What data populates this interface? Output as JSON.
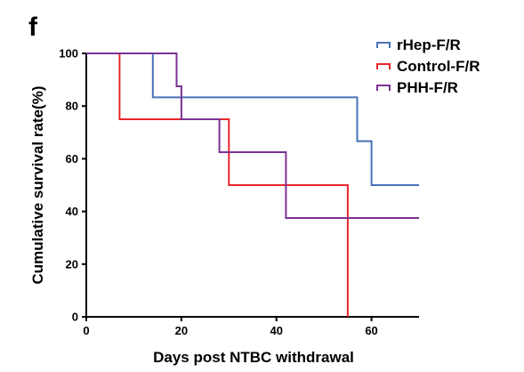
{
  "panel_label": "f",
  "chart_data": {
    "type": "line",
    "subtype": "kaplan-meier-step",
    "xlabel": "Days post NTBC withdrawal",
    "ylabel": "Cumulative survival rate(%)",
    "xlim": [
      0,
      70
    ],
    "ylim": [
      0,
      100
    ],
    "x_ticks": [
      0,
      20,
      40,
      60
    ],
    "y_ticks": [
      0,
      20,
      40,
      60,
      80,
      100
    ],
    "grid": false,
    "legend_position": "top-right",
    "series": [
      {
        "name": "rHep-F/R",
        "color": "#4a72b8",
        "x": [
          0,
          14,
          14,
          57,
          57,
          60,
          60,
          70
        ],
        "y": [
          100,
          100,
          83.3,
          83.3,
          66.7,
          66.7,
          50,
          50
        ]
      },
      {
        "name": "Control-F/R",
        "color": "#e8262b",
        "x": [
          0,
          7,
          7,
          30,
          30,
          55,
          55
        ],
        "y": [
          100,
          100,
          75,
          75,
          50,
          50,
          0
        ]
      },
      {
        "name": "PHH-F/R",
        "color": "#7b3294",
        "x": [
          0,
          19,
          19,
          20,
          20,
          28,
          28,
          42,
          42,
          70
        ],
        "y": [
          100,
          100,
          87.5,
          87.5,
          75,
          75,
          62.5,
          62.5,
          37.5,
          37.5
        ]
      }
    ]
  }
}
